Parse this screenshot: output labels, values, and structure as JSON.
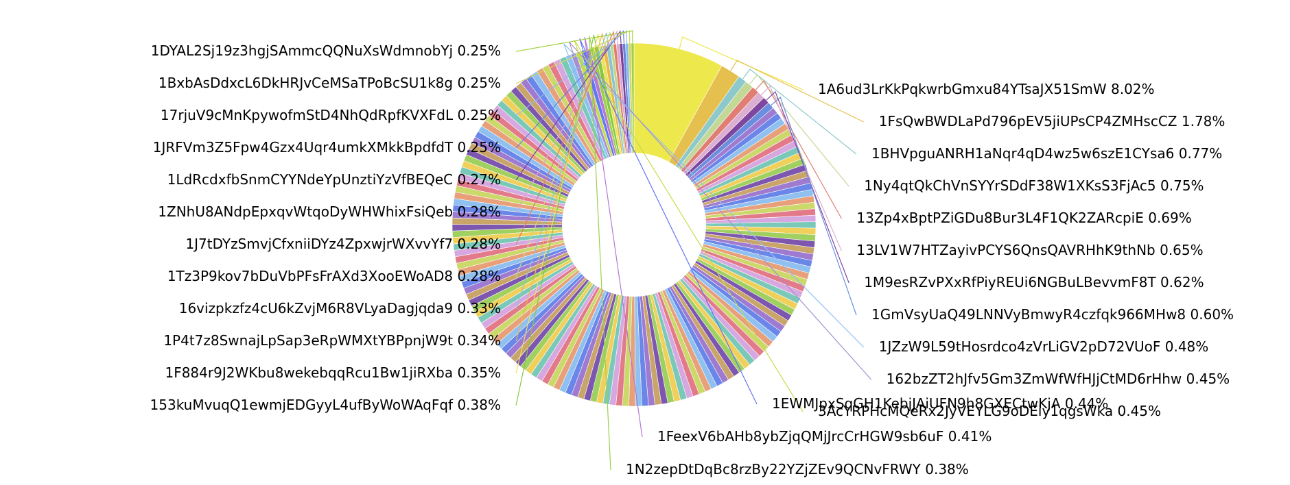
{
  "chart_data": {
    "type": "pie",
    "style": "donut",
    "start_angle": "12 o'clock",
    "direction": "clockwise",
    "labeled_slices": [
      {
        "label": "1A6ud3LrKkPqkwrbGmxu84YTsaJX51SmW",
        "value": 8.02,
        "display": "8.02%",
        "color": "#ede84b"
      },
      {
        "label": "1FsQwBWDLaPd796pEV5jiUPsCP4ZMHscCZ",
        "value": 1.78,
        "display": "1.78%",
        "color": "#e6c04f"
      },
      {
        "label": "1BHVpguANRH1aNqr4qD4wz5w6szE1CYsa6",
        "value": 0.77,
        "display": "0.77%",
        "color": "#8dc9cb"
      },
      {
        "label": "1Ny4qtQkChVnSYYrSDdF38W1XKsS3FjAc5",
        "value": 0.75,
        "display": "0.75%",
        "color": "#c3d894"
      },
      {
        "label": "13Zp4xBptPZiGDu8Bur3L4F1QK2ZARcpiE",
        "value": 0.69,
        "display": "0.69%",
        "color": "#e07e74"
      },
      {
        "label": "13LV1W7HTZayivPCYS6QnsQAVRHhK9thNb",
        "value": 0.65,
        "display": "0.65%",
        "color": "#dcaed2"
      },
      {
        "label": "1M9esRZvPXxRfPiyREUi6NGBuLBevvmF8T",
        "value": 0.62,
        "display": "0.62%",
        "color": "#7d479f"
      },
      {
        "label": "1GmVsyUaQ49LNNVyBmwyR4czfqk966MHw8",
        "value": 0.6,
        "display": "0.60%",
        "color": "#6b8fde"
      },
      {
        "label": "1JZzW9L59tHosrdco4zVrLiGV2pD72VUoF",
        "value": 0.48,
        "display": "0.48%",
        "color": "#8ec0f3"
      },
      {
        "label": "162bzZT2hJfv5Gm3ZmWfWfHJjCtMD6rHhw",
        "value": 0.45,
        "display": "0.45%",
        "color": "#a58fcf"
      },
      {
        "label": "3AcYRPHcMQeRx2JyVEYLG9oDEiy1qgsWka",
        "value": 0.45,
        "display": "0.45%",
        "color": "#c5dc4c"
      },
      {
        "label": "1EWMJpxSqGH1KebjJAiUFN9h8GXECtwKjA",
        "value": 0.44,
        "display": "0.44%",
        "color": "#6275f3"
      },
      {
        "label": "1FeexV6bAHb8ybZjqQMjJrcCrHGW9sb6uF",
        "value": 0.41,
        "display": "0.41%",
        "color": "#b477d3"
      },
      {
        "label": "1N2zepDtDqBc8rzBy22YZjZEv9QCNvFRWY",
        "value": 0.38,
        "display": "0.38%",
        "color": "#9ccf4a"
      },
      {
        "label": "153kuMvuqQ1ewmjEDGyyL4ufByWoWAqFqf",
        "value": 0.38,
        "display": "0.38%",
        "color": "#85c93e"
      },
      {
        "label": "1F884r9J2WKbu8wekebqqRcu1Bw1jiRXba",
        "value": 0.35,
        "display": "0.35%",
        "color": "#ece257"
      },
      {
        "label": "1P4t7z8SwnajLpSap3eRpWMXtYBPpnjW9t",
        "value": 0.34,
        "display": "0.34%",
        "color": "#e9b54c"
      },
      {
        "label": "16vizpkzfz4cU6kZvjM6R8VLyaDagjqda9",
        "value": 0.33,
        "display": "0.33%",
        "color": "#88c4d1"
      },
      {
        "label": "1Tz3P9kov7bDuVbPFsFrAXd3XooEWoAD8",
        "value": 0.28,
        "display": "0.28%",
        "color": "#bfd78d"
      },
      {
        "label": "1J7tDYzSmvjCfxniiDYz4ZpxwjrWXvvYf7",
        "value": 0.28,
        "display": "0.28%",
        "color": "#e27b6c"
      },
      {
        "label": "1ZNhU8ANdpEpxqvWtqoDyWHWhixFsiQeb",
        "value": 0.28,
        "display": "0.28%",
        "color": "#dba8cf"
      },
      {
        "label": "1LdRcdxfbSnmCYYNdeYpUnztiYzVfBEQeC",
        "value": 0.27,
        "display": "0.27%",
        "color": "#7b3f9c"
      },
      {
        "label": "1JRFVm3Z5Fpw4Gzx4Uqr4umkXMkkBpdfdT",
        "value": 0.25,
        "display": "0.25%",
        "color": "#6483db"
      },
      {
        "label": "17rjuV9cMnKpywofmStD4NhQdRpfKVXFdL",
        "value": 0.25,
        "display": "0.25%",
        "color": "#8ab9ee"
      },
      {
        "label": "1BxbAsDdxcL6DkHRJvCeMSaTPoBcSU1k8g",
        "value": 0.25,
        "display": "0.25%",
        "color": "#cfd85a"
      },
      {
        "label": "1DYAL2Sj19z3hgjSAmmcQQNuXsWdmnobYj",
        "value": 0.25,
        "display": "0.25%",
        "color": "#a3cf44"
      }
    ],
    "other_small_slices_count": 140,
    "other_small_slices_colors": [
      "#9e7bd0",
      "#6a86e8",
      "#8fc0f0",
      "#e8a07a",
      "#cbd86a",
      "#e37a8a",
      "#d7a8e0",
      "#7ac9b8",
      "#f0cf5a",
      "#a0d060",
      "#7d56b0",
      "#c9a56a"
    ]
  }
}
